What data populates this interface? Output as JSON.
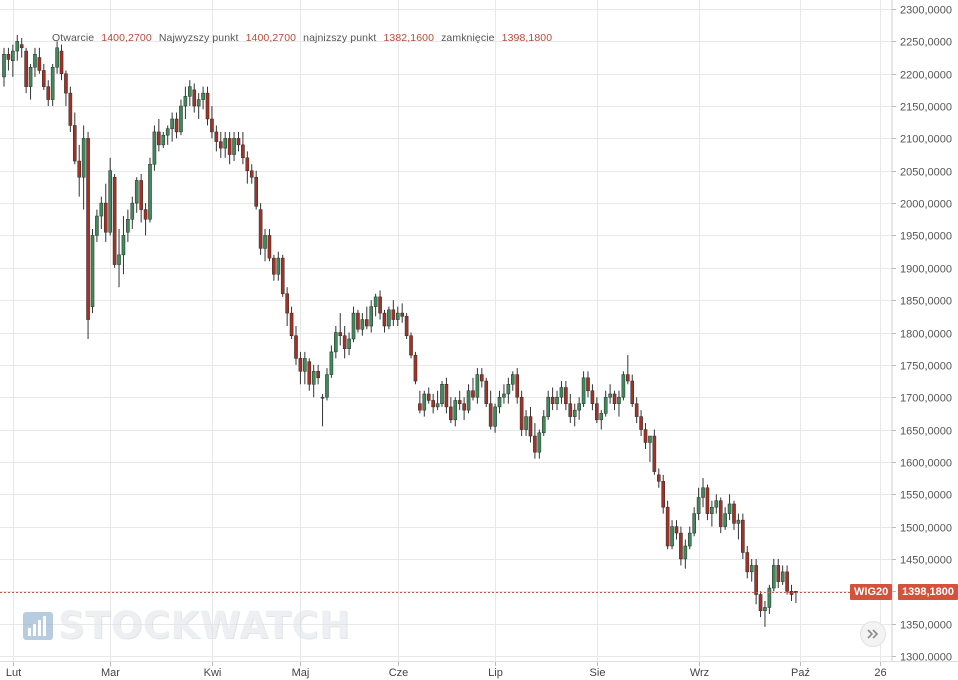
{
  "legend": {
    "open_label": "Otwarcie",
    "open_value": "1400,2700",
    "high_label": "Najwyzszy punkt",
    "high_value": "1400,2700",
    "low_label": "najnizszy punkt",
    "low_value": "1382,1600",
    "close_label": "zamknięcie",
    "close_value": "1398,1800"
  },
  "price_tag": {
    "symbol": "WIG20",
    "value": "1398,1800",
    "color": "#d4513c"
  },
  "watermark": {
    "text": "STOCKWATCH"
  },
  "scroll_button": {
    "icon": "double-chevron-right-icon"
  },
  "colors": {
    "up": "#3f8a5b",
    "down": "#a33226",
    "grid": "#e8e8e8",
    "last_price_line": "#d4513c"
  },
  "chart_data": {
    "type": "candlestick",
    "series_name": "WIG20",
    "ylim": [
      1300,
      2300
    ],
    "y_ticks": [
      "2300,0000",
      "2250,0000",
      "2200,0000",
      "2150,0000",
      "2100,0000",
      "2050,0000",
      "2000,0000",
      "1950,0000",
      "1900,0000",
      "1850,0000",
      "1800,0000",
      "1750,0000",
      "1700,0000",
      "1650,0000",
      "1600,0000",
      "1550,0000",
      "1500,0000",
      "1450,0000",
      "1400,0000",
      "1350,0000",
      "1300,0000"
    ],
    "y_tick_values": [
      2300,
      2250,
      2200,
      2150,
      2100,
      2050,
      2000,
      1950,
      1900,
      1850,
      1800,
      1750,
      1700,
      1650,
      1600,
      1550,
      1500,
      1450,
      1400,
      1350,
      1300
    ],
    "x_ticks": [
      {
        "label": "Lut",
        "index": 2
      },
      {
        "label": "Mar",
        "index": 24
      },
      {
        "label": "Kwi",
        "index": 47
      },
      {
        "label": "Maj",
        "index": 67
      },
      {
        "label": "Cze",
        "index": 89
      },
      {
        "label": "Lip",
        "index": 111
      },
      {
        "label": "Sie",
        "index": 134
      },
      {
        "label": "Wrz",
        "index": 157
      },
      {
        "label": "Paź",
        "index": 180
      },
      {
        "label": "26",
        "index": 198
      }
    ],
    "index_range": [
      0,
      198
    ],
    "last_price": 1398.18,
    "candles": [
      [
        2195,
        2240,
        2180,
        2230
      ],
      [
        2230,
        2240,
        2205,
        2222
      ],
      [
        2220,
        2245,
        2195,
        2235
      ],
      [
        2235,
        2260,
        2220,
        2250
      ],
      [
        2245,
        2255,
        2225,
        2240
      ],
      [
        2235,
        2240,
        2170,
        2180
      ],
      [
        2180,
        2215,
        2160,
        2210
      ],
      [
        2210,
        2240,
        2195,
        2230
      ],
      [
        2225,
        2240,
        2200,
        2205
      ],
      [
        2205,
        2215,
        2175,
        2180
      ],
      [
        2180,
        2190,
        2150,
        2160
      ],
      [
        2160,
        2215,
        2150,
        2210
      ],
      [
        2210,
        2250,
        2200,
        2240
      ],
      [
        2235,
        2245,
        2190,
        2200
      ],
      [
        2200,
        2205,
        2150,
        2170
      ],
      [
        2170,
        2180,
        2110,
        2120
      ],
      [
        2120,
        2140,
        2060,
        2065
      ],
      [
        2065,
        2090,
        2010,
        2040
      ],
      [
        2040,
        2120,
        1990,
        2100
      ],
      [
        2100,
        2110,
        1790,
        1820
      ],
      [
        1840,
        1960,
        1830,
        1950
      ],
      [
        1950,
        1990,
        1940,
        1980
      ],
      [
        1980,
        2010,
        1960,
        2000
      ],
      [
        2000,
        2030,
        1940,
        1955
      ],
      [
        1955,
        2070,
        1950,
        2050
      ],
      [
        2040,
        2045,
        1900,
        1905
      ],
      [
        1905,
        1960,
        1870,
        1920
      ],
      [
        1920,
        1980,
        1890,
        1950
      ],
      [
        1955,
        1990,
        1940,
        1975
      ],
      [
        1975,
        2010,
        1960,
        2000
      ],
      [
        2000,
        2040,
        1985,
        2035
      ],
      [
        2035,
        2045,
        1970,
        1990
      ],
      [
        1990,
        2000,
        1950,
        1975
      ],
      [
        1975,
        2070,
        1970,
        2060
      ],
      [
        2060,
        2120,
        2050,
        2110
      ],
      [
        2110,
        2130,
        2080,
        2090
      ],
      [
        2090,
        2110,
        2085,
        2105
      ],
      [
        2105,
        2120,
        2090,
        2115
      ],
      [
        2115,
        2140,
        2095,
        2130
      ],
      [
        2130,
        2140,
        2100,
        2110
      ],
      [
        2110,
        2160,
        2105,
        2150
      ],
      [
        2150,
        2180,
        2130,
        2165
      ],
      [
        2165,
        2190,
        2150,
        2180
      ],
      [
        2175,
        2185,
        2140,
        2150
      ],
      [
        2150,
        2170,
        2130,
        2160
      ],
      [
        2160,
        2180,
        2145,
        2170
      ],
      [
        2170,
        2180,
        2120,
        2130
      ],
      [
        2130,
        2150,
        2100,
        2110
      ],
      [
        2110,
        2120,
        2080,
        2095
      ],
      [
        2095,
        2110,
        2070,
        2085
      ],
      [
        2085,
        2110,
        2070,
        2100
      ],
      [
        2100,
        2110,
        2060,
        2075
      ],
      [
        2075,
        2110,
        2065,
        2100
      ],
      [
        2100,
        2110,
        2080,
        2090
      ],
      [
        2090,
        2110,
        2060,
        2070
      ],
      [
        2070,
        2080,
        2030,
        2050
      ],
      [
        2050,
        2060,
        2030,
        2040
      ],
      [
        2040,
        2050,
        1990,
        1995
      ],
      [
        1990,
        2000,
        1920,
        1930
      ],
      [
        1930,
        1960,
        1910,
        1950
      ],
      [
        1950,
        1960,
        1910,
        1915
      ],
      [
        1915,
        1920,
        1880,
        1890
      ],
      [
        1890,
        1925,
        1880,
        1915
      ],
      [
        1915,
        1920,
        1855,
        1860
      ],
      [
        1860,
        1870,
        1810,
        1830
      ],
      [
        1830,
        1840,
        1790,
        1795
      ],
      [
        1795,
        1810,
        1750,
        1760
      ],
      [
        1760,
        1770,
        1720,
        1740
      ],
      [
        1740,
        1770,
        1720,
        1760
      ],
      [
        1755,
        1760,
        1710,
        1720
      ],
      [
        1720,
        1750,
        1700,
        1740
      ],
      [
        1740,
        1750,
        1720,
        1730
      ],
      [
        1700,
        1705,
        1655,
        1700
      ],
      [
        1700,
        1745,
        1695,
        1735
      ],
      [
        1735,
        1780,
        1730,
        1770
      ],
      [
        1770,
        1810,
        1760,
        1800
      ],
      [
        1800,
        1830,
        1780,
        1795
      ],
      [
        1795,
        1810,
        1760,
        1775
      ],
      [
        1775,
        1800,
        1765,
        1790
      ],
      [
        1790,
        1840,
        1785,
        1830
      ],
      [
        1830,
        1835,
        1800,
        1805
      ],
      [
        1805,
        1830,
        1795,
        1820
      ],
      [
        1820,
        1840,
        1805,
        1810
      ],
      [
        1810,
        1850,
        1800,
        1840
      ],
      [
        1840,
        1860,
        1825,
        1855
      ],
      [
        1855,
        1865,
        1820,
        1830
      ],
      [
        1830,
        1835,
        1800,
        1810
      ],
      [
        1810,
        1840,
        1805,
        1835
      ],
      [
        1835,
        1850,
        1810,
        1820
      ],
      [
        1820,
        1840,
        1810,
        1830
      ],
      [
        1830,
        1845,
        1815,
        1825
      ],
      [
        1825,
        1830,
        1790,
        1795
      ],
      [
        1795,
        1800,
        1760,
        1765
      ],
      [
        1765,
        1770,
        1720,
        1725
      ],
      [
        1690,
        1710,
        1675,
        1680
      ],
      [
        1680,
        1710,
        1670,
        1705
      ],
      [
        1705,
        1715,
        1690,
        1695
      ],
      [
        1695,
        1705,
        1675,
        1685
      ],
      [
        1685,
        1710,
        1680,
        1690
      ],
      [
        1690,
        1725,
        1685,
        1720
      ],
      [
        1720,
        1730,
        1675,
        1685
      ],
      [
        1685,
        1700,
        1660,
        1665
      ],
      [
        1665,
        1700,
        1655,
        1695
      ],
      [
        1695,
        1710,
        1680,
        1690
      ],
      [
        1690,
        1700,
        1665,
        1680
      ],
      [
        1680,
        1720,
        1675,
        1710
      ],
      [
        1710,
        1730,
        1695,
        1700
      ],
      [
        1700,
        1745,
        1690,
        1735
      ],
      [
        1735,
        1745,
        1715,
        1725
      ],
      [
        1725,
        1730,
        1685,
        1690
      ],
      [
        1690,
        1710,
        1650,
        1655
      ],
      [
        1655,
        1690,
        1645,
        1685
      ],
      [
        1685,
        1710,
        1675,
        1700
      ],
      [
        1700,
        1720,
        1690,
        1705
      ],
      [
        1705,
        1730,
        1690,
        1720
      ],
      [
        1720,
        1740,
        1710,
        1735
      ],
      [
        1735,
        1745,
        1690,
        1700
      ],
      [
        1700,
        1710,
        1640,
        1650
      ],
      [
        1650,
        1680,
        1640,
        1670
      ],
      [
        1670,
        1685,
        1630,
        1640
      ],
      [
        1640,
        1660,
        1605,
        1615
      ],
      [
        1615,
        1650,
        1605,
        1645
      ],
      [
        1645,
        1680,
        1640,
        1670
      ],
      [
        1670,
        1710,
        1665,
        1700
      ],
      [
        1700,
        1715,
        1680,
        1690
      ],
      [
        1690,
        1710,
        1680,
        1700
      ],
      [
        1700,
        1725,
        1690,
        1715
      ],
      [
        1715,
        1725,
        1680,
        1690
      ],
      [
        1690,
        1705,
        1660,
        1670
      ],
      [
        1670,
        1690,
        1655,
        1680
      ],
      [
        1680,
        1700,
        1665,
        1690
      ],
      [
        1690,
        1740,
        1685,
        1730
      ],
      [
        1730,
        1740,
        1700,
        1710
      ],
      [
        1710,
        1720,
        1680,
        1690
      ],
      [
        1690,
        1700,
        1660,
        1665
      ],
      [
        1665,
        1680,
        1650,
        1675
      ],
      [
        1675,
        1710,
        1670,
        1700
      ],
      [
        1700,
        1720,
        1690,
        1705
      ],
      [
        1705,
        1710,
        1680,
        1690
      ],
      [
        1690,
        1710,
        1670,
        1700
      ],
      [
        1700,
        1740,
        1695,
        1735
      ],
      [
        1735,
        1765,
        1720,
        1725
      ],
      [
        1725,
        1735,
        1685,
        1690
      ],
      [
        1690,
        1700,
        1660,
        1670
      ],
      [
        1670,
        1680,
        1640,
        1650
      ],
      [
        1650,
        1660,
        1620,
        1630
      ],
      [
        1630,
        1640,
        1600,
        1640
      ],
      [
        1640,
        1650,
        1580,
        1585
      ],
      [
        1580,
        1590,
        1560,
        1570
      ],
      [
        1570,
        1580,
        1520,
        1530
      ],
      [
        1530,
        1540,
        1465,
        1470
      ],
      [
        1470,
        1510,
        1465,
        1500
      ],
      [
        1500,
        1510,
        1480,
        1490
      ],
      [
        1490,
        1500,
        1440,
        1450
      ],
      [
        1450,
        1480,
        1435,
        1470
      ],
      [
        1470,
        1500,
        1465,
        1490
      ],
      [
        1490,
        1530,
        1485,
        1520
      ],
      [
        1520,
        1560,
        1510,
        1545
      ],
      [
        1545,
        1575,
        1530,
        1560
      ],
      [
        1560,
        1565,
        1510,
        1520
      ],
      [
        1520,
        1540,
        1500,
        1530
      ],
      [
        1530,
        1550,
        1520,
        1540
      ],
      [
        1540,
        1545,
        1490,
        1500
      ],
      [
        1500,
        1530,
        1495,
        1520
      ],
      [
        1520,
        1550,
        1510,
        1535
      ],
      [
        1535,
        1540,
        1495,
        1505
      ],
      [
        1505,
        1520,
        1480,
        1510
      ],
      [
        1510,
        1520,
        1450,
        1460
      ],
      [
        1460,
        1470,
        1420,
        1430
      ],
      [
        1430,
        1450,
        1415,
        1440
      ],
      [
        1440,
        1450,
        1380,
        1395
      ],
      [
        1395,
        1400,
        1360,
        1370
      ],
      [
        1370,
        1385,
        1345,
        1375
      ],
      [
        1375,
        1410,
        1365,
        1405
      ],
      [
        1405,
        1450,
        1400,
        1440
      ],
      [
        1440,
        1450,
        1405,
        1415
      ],
      [
        1415,
        1440,
        1410,
        1430
      ],
      [
        1430,
        1440,
        1395,
        1400
      ],
      [
        1400,
        1410,
        1385,
        1395
      ],
      [
        1400,
        1400,
        1382,
        1398
      ]
    ]
  }
}
